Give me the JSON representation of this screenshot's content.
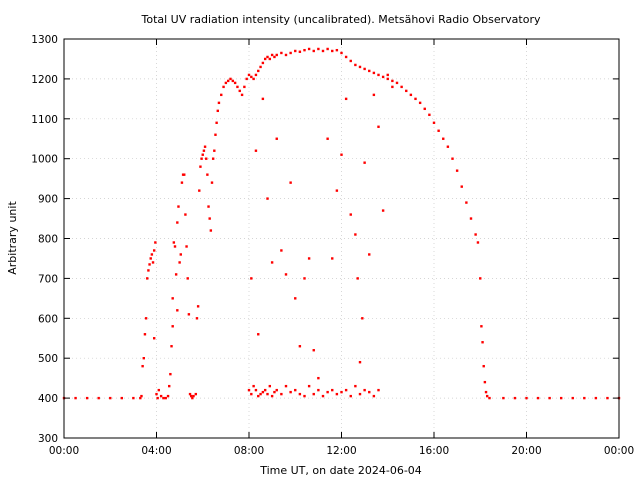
{
  "chart_data": {
    "type": "scatter",
    "title": "Total UV radiation intensity (uncalibrated). Metsähovi Radio Observatory",
    "xlabel": "Time UT, on date 2024-06-04",
    "ylabel": "Arbitrary unit",
    "xlim": [
      "00:00",
      "24:00"
    ],
    "ylim": [
      300,
      1300
    ],
    "x_ticks": [
      "00:00",
      "04:00",
      "08:00",
      "12:00",
      "16:00",
      "20:00",
      "00:00"
    ],
    "y_ticks": [
      300,
      400,
      500,
      600,
      700,
      800,
      900,
      1000,
      1100,
      1200,
      1300
    ],
    "grid": true,
    "marker_color": "#ff0000",
    "series": [
      {
        "x_unit": "hours UT",
        "points": [
          [
            0.0,
            400
          ],
          [
            0.5,
            400
          ],
          [
            1.0,
            400
          ],
          [
            1.5,
            400
          ],
          [
            2.0,
            400
          ],
          [
            2.5,
            400
          ],
          [
            3.0,
            400
          ],
          [
            3.3,
            400
          ],
          [
            3.35,
            405
          ],
          [
            3.4,
            480
          ],
          [
            3.45,
            500
          ],
          [
            3.5,
            560
          ],
          [
            3.55,
            600
          ],
          [
            3.6,
            700
          ],
          [
            3.65,
            720
          ],
          [
            3.7,
            735
          ],
          [
            3.75,
            750
          ],
          [
            3.8,
            760
          ],
          [
            3.85,
            740
          ],
          [
            3.9,
            770
          ],
          [
            3.95,
            790
          ],
          [
            3.9,
            550
          ],
          [
            4.0,
            410
          ],
          [
            4.05,
            400
          ],
          [
            4.1,
            420
          ],
          [
            4.2,
            405
          ],
          [
            4.3,
            400
          ],
          [
            4.4,
            400
          ],
          [
            4.5,
            405
          ],
          [
            4.55,
            430
          ],
          [
            4.6,
            460
          ],
          [
            4.65,
            530
          ],
          [
            4.7,
            580
          ],
          [
            4.7,
            650
          ],
          [
            4.75,
            790
          ],
          [
            4.8,
            780
          ],
          [
            4.85,
            710
          ],
          [
            4.9,
            620
          ],
          [
            4.9,
            840
          ],
          [
            4.95,
            880
          ],
          [
            5.0,
            740
          ],
          [
            5.05,
            760
          ],
          [
            5.1,
            940
          ],
          [
            5.15,
            960
          ],
          [
            5.2,
            960
          ],
          [
            5.25,
            860
          ],
          [
            5.3,
            780
          ],
          [
            5.35,
            700
          ],
          [
            5.4,
            610
          ],
          [
            5.45,
            410
          ],
          [
            5.5,
            405
          ],
          [
            5.55,
            400
          ],
          [
            5.6,
            405
          ],
          [
            5.7,
            410
          ],
          [
            5.75,
            600
          ],
          [
            5.8,
            630
          ],
          [
            5.85,
            920
          ],
          [
            5.9,
            980
          ],
          [
            5.95,
            1000
          ],
          [
            6.0,
            1010
          ],
          [
            6.05,
            1020
          ],
          [
            6.1,
            1030
          ],
          [
            6.15,
            1000
          ],
          [
            6.2,
            960
          ],
          [
            6.25,
            880
          ],
          [
            6.3,
            850
          ],
          [
            6.35,
            820
          ],
          [
            6.4,
            940
          ],
          [
            6.45,
            1000
          ],
          [
            6.5,
            1020
          ],
          [
            6.55,
            1060
          ],
          [
            6.6,
            1090
          ],
          [
            6.65,
            1120
          ],
          [
            6.7,
            1140
          ],
          [
            6.8,
            1160
          ],
          [
            6.9,
            1180
          ],
          [
            7.0,
            1190
          ],
          [
            7.1,
            1195
          ],
          [
            7.2,
            1200
          ],
          [
            7.3,
            1195
          ],
          [
            7.4,
            1190
          ],
          [
            7.5,
            1180
          ],
          [
            7.6,
            1170
          ],
          [
            7.7,
            1160
          ],
          [
            7.8,
            1180
          ],
          [
            7.9,
            1200
          ],
          [
            8.0,
            1210
          ],
          [
            8.1,
            1205
          ],
          [
            8.2,
            1200
          ],
          [
            8.3,
            1210
          ],
          [
            8.4,
            1220
          ],
          [
            8.5,
            1230
          ],
          [
            8.6,
            1240
          ],
          [
            8.7,
            1250
          ],
          [
            8.8,
            1255
          ],
          [
            8.9,
            1250
          ],
          [
            9.0,
            1260
          ],
          [
            9.1,
            1255
          ],
          [
            9.2,
            1260
          ],
          [
            9.4,
            1265
          ],
          [
            9.6,
            1260
          ],
          [
            9.8,
            1265
          ],
          [
            10.0,
            1270
          ],
          [
            10.2,
            1268
          ],
          [
            10.4,
            1272
          ],
          [
            10.6,
            1275
          ],
          [
            10.8,
            1270
          ],
          [
            11.0,
            1275
          ],
          [
            11.2,
            1270
          ],
          [
            11.4,
            1275
          ],
          [
            11.6,
            1270
          ],
          [
            11.8,
            1272
          ],
          [
            12.0,
            1265
          ],
          [
            12.2,
            1255
          ],
          [
            12.4,
            1245
          ],
          [
            12.6,
            1235
          ],
          [
            12.8,
            1230
          ],
          [
            13.0,
            1225
          ],
          [
            13.2,
            1220
          ],
          [
            13.4,
            1215
          ],
          [
            13.6,
            1210
          ],
          [
            13.8,
            1205
          ],
          [
            14.0,
            1200
          ],
          [
            14.2,
            1195
          ],
          [
            14.4,
            1190
          ],
          [
            14.6,
            1180
          ],
          [
            14.8,
            1170
          ],
          [
            15.0,
            1160
          ],
          [
            15.2,
            1150
          ],
          [
            15.4,
            1140
          ],
          [
            15.6,
            1125
          ],
          [
            15.8,
            1110
          ],
          [
            16.0,
            1090
          ],
          [
            16.2,
            1070
          ],
          [
            16.4,
            1050
          ],
          [
            16.6,
            1030
          ],
          [
            16.8,
            1000
          ],
          [
            17.0,
            970
          ],
          [
            17.2,
            930
          ],
          [
            17.4,
            890
          ],
          [
            17.6,
            850
          ],
          [
            17.8,
            810
          ],
          [
            17.9,
            790
          ],
          [
            18.0,
            700
          ],
          [
            18.05,
            580
          ],
          [
            18.1,
            540
          ],
          [
            18.15,
            480
          ],
          [
            18.2,
            440
          ],
          [
            18.25,
            415
          ],
          [
            18.3,
            405
          ],
          [
            18.4,
            400
          ],
          [
            19.0,
            400
          ],
          [
            19.5,
            400
          ],
          [
            20.0,
            400
          ],
          [
            20.5,
            400
          ],
          [
            21.0,
            400
          ],
          [
            21.5,
            400
          ],
          [
            22.0,
            400
          ],
          [
            22.5,
            400
          ],
          [
            23.0,
            400
          ],
          [
            23.5,
            400
          ],
          [
            24.0,
            400
          ],
          [
            8.0,
            420
          ],
          [
            8.1,
            410
          ],
          [
            8.2,
            430
          ],
          [
            8.3,
            420
          ],
          [
            8.4,
            405
          ],
          [
            8.5,
            410
          ],
          [
            8.6,
            415
          ],
          [
            8.7,
            420
          ],
          [
            8.8,
            410
          ],
          [
            8.9,
            430
          ],
          [
            9.0,
            405
          ],
          [
            9.1,
            415
          ],
          [
            9.2,
            420
          ],
          [
            9.4,
            410
          ],
          [
            9.6,
            430
          ],
          [
            9.8,
            415
          ],
          [
            10.0,
            420
          ],
          [
            10.2,
            410
          ],
          [
            10.4,
            405
          ],
          [
            10.6,
            430
          ],
          [
            10.8,
            410
          ],
          [
            11.0,
            420
          ],
          [
            11.2,
            405
          ],
          [
            11.4,
            415
          ],
          [
            11.6,
            420
          ],
          [
            11.8,
            410
          ],
          [
            12.0,
            415
          ],
          [
            12.2,
            420
          ],
          [
            12.4,
            405
          ],
          [
            12.6,
            430
          ],
          [
            12.8,
            410
          ],
          [
            13.0,
            420
          ],
          [
            13.2,
            415
          ],
          [
            13.4,
            405
          ],
          [
            13.6,
            420
          ],
          [
            8.1,
            700
          ],
          [
            8.3,
            1020
          ],
          [
            8.4,
            560
          ],
          [
            8.6,
            1150
          ],
          [
            8.8,
            900
          ],
          [
            9.0,
            740
          ],
          [
            9.2,
            1050
          ],
          [
            9.4,
            770
          ],
          [
            9.6,
            710
          ],
          [
            9.8,
            940
          ],
          [
            10.0,
            650
          ],
          [
            10.2,
            530
          ],
          [
            10.4,
            700
          ],
          [
            10.6,
            750
          ],
          [
            10.8,
            520
          ],
          [
            11.0,
            450
          ],
          [
            11.4,
            1050
          ],
          [
            11.6,
            750
          ],
          [
            11.8,
            920
          ],
          [
            12.0,
            1010
          ],
          [
            12.2,
            1150
          ],
          [
            12.4,
            860
          ],
          [
            12.6,
            810
          ],
          [
            12.7,
            700
          ],
          [
            12.8,
            490
          ],
          [
            12.9,
            600
          ],
          [
            13.0,
            990
          ],
          [
            13.2,
            760
          ],
          [
            13.4,
            1160
          ],
          [
            13.6,
            1080
          ],
          [
            13.8,
            870
          ],
          [
            14.0,
            1210
          ],
          [
            14.2,
            1180
          ]
        ]
      }
    ]
  }
}
